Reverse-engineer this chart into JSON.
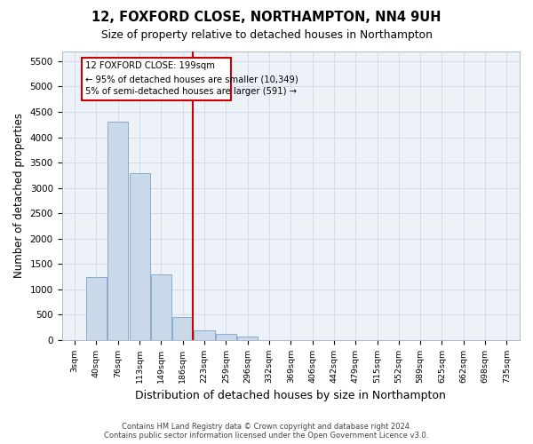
{
  "title": "12, FOXFORD CLOSE, NORTHAMPTON, NN4 9UH",
  "subtitle": "Size of property relative to detached houses in Northampton",
  "xlabel": "Distribution of detached houses by size in Northampton",
  "ylabel": "Number of detached properties",
  "footer_line1": "Contains HM Land Registry data © Crown copyright and database right 2024.",
  "footer_line2": "Contains public sector information licensed under the Open Government Licence v3.0.",
  "bar_color": "#c9d9ea",
  "bar_edge_color": "#7ba3c8",
  "categories": [
    "3sqm",
    "40sqm",
    "76sqm",
    "113sqm",
    "149sqm",
    "186sqm",
    "223sqm",
    "259sqm",
    "296sqm",
    "332sqm",
    "369sqm",
    "406sqm",
    "442sqm",
    "479sqm",
    "515sqm",
    "552sqm",
    "589sqm",
    "625sqm",
    "662sqm",
    "698sqm",
    "735sqm"
  ],
  "values": [
    0,
    1250,
    4300,
    3300,
    1300,
    450,
    200,
    115,
    65,
    0,
    0,
    0,
    0,
    0,
    0,
    0,
    0,
    0,
    0,
    0,
    0
  ],
  "vline_x": 5.47,
  "vline_color": "#cc0000",
  "annotation_line1": "12 FOXFORD CLOSE: 199sqm",
  "annotation_line2": "← 95% of detached houses are smaller (10,349)",
  "annotation_line3": "5% of semi-detached houses are larger (591) →",
  "ylim": [
    0,
    5700
  ],
  "yticks": [
    0,
    500,
    1000,
    1500,
    2000,
    2500,
    3000,
    3500,
    4000,
    4500,
    5000,
    5500
  ],
  "grid_color": "#cdd8e8",
  "bg_color": "#edf1f8"
}
